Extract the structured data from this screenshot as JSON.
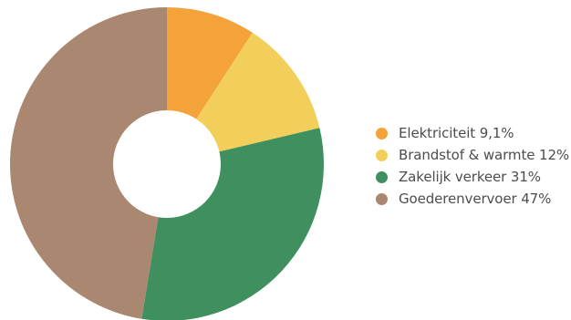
{
  "chart_data": {
    "type": "pie",
    "variant": "donut",
    "categories": [
      "Elektriciteit",
      "Brandstof & warmte",
      "Zakelijk verkeer",
      "Goederenvervoer"
    ],
    "values": [
      9.1,
      12,
      31,
      47
    ],
    "unit": "%",
    "colors": [
      "#f4a23a",
      "#f2cf5b",
      "#3f8f5f",
      "#a98771"
    ],
    "legend": {
      "position": "right",
      "entries": [
        {
          "label": "Elektriciteit 9,1%",
          "color": "#f4a23a"
        },
        {
          "label": "Brandstof & warmte 12%",
          "color": "#f2cf5b"
        },
        {
          "label": "Zakelijk verkeer 31%",
          "color": "#3f8f5f"
        },
        {
          "label": "Goederenvervoer 47%",
          "color": "#a98771"
        }
      ]
    },
    "start_angle": "12 o'clock",
    "direction": "clockwise"
  }
}
